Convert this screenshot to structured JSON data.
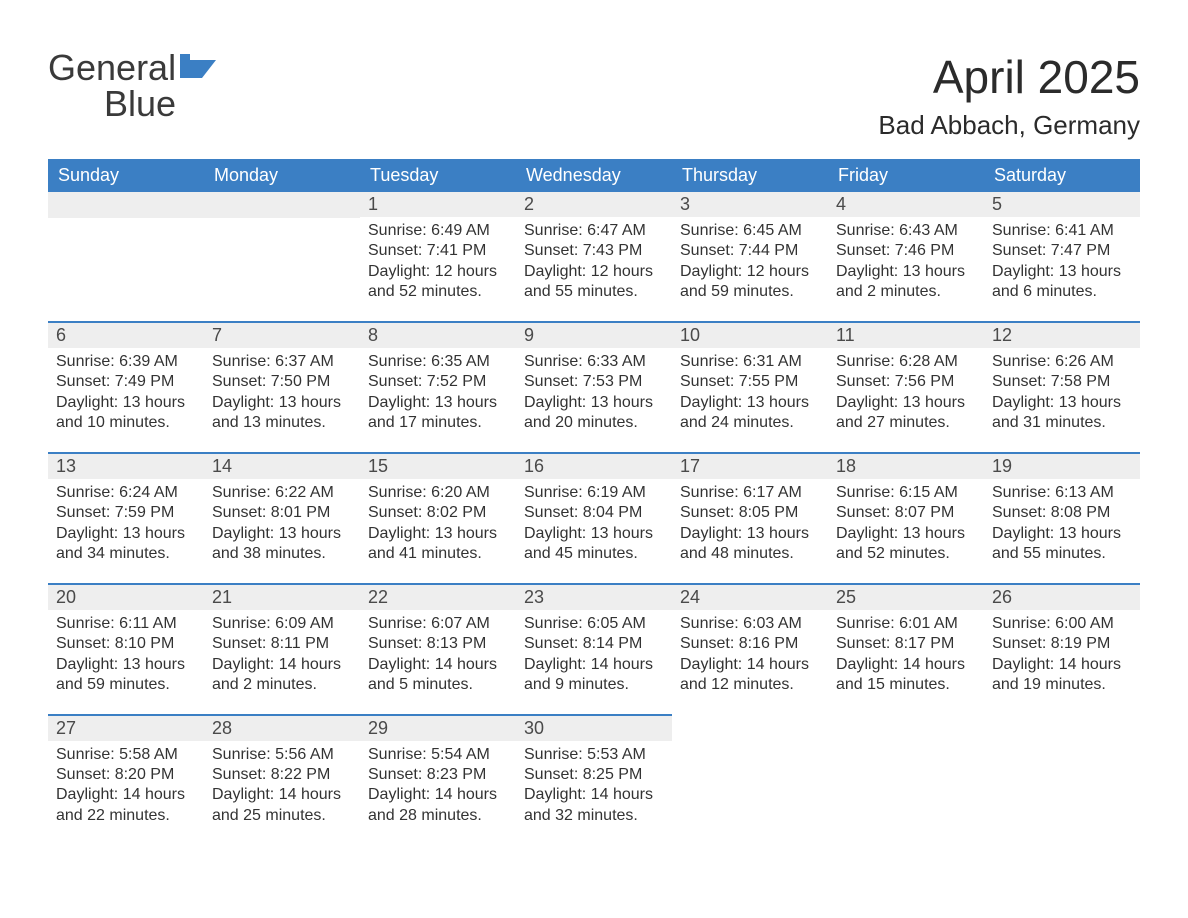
{
  "logo": {
    "word1": "General",
    "word2": "Blue"
  },
  "header": {
    "month_title": "April 2025",
    "location": "Bad Abbach, Germany"
  },
  "colors": {
    "header_bg": "#3b7fc4",
    "header_text": "#ffffff",
    "band_bg": "#eeeeee",
    "band_border": "#3b7fc4",
    "text": "#333333",
    "page_bg": "#ffffff"
  },
  "fonts": {
    "title_size": 46,
    "location_size": 26,
    "dow_size": 18,
    "daynum_size": 18,
    "body_size": 16
  },
  "dow": [
    "Sunday",
    "Monday",
    "Tuesday",
    "Wednesday",
    "Thursday",
    "Friday",
    "Saturday"
  ],
  "weeks": [
    [
      {
        "blank": true
      },
      {
        "blank": true
      },
      {
        "n": "1",
        "sunrise": "6:49 AM",
        "sunset": "7:41 PM",
        "dl1": "12 hours",
        "dl2": "and 52 minutes."
      },
      {
        "n": "2",
        "sunrise": "6:47 AM",
        "sunset": "7:43 PM",
        "dl1": "12 hours",
        "dl2": "and 55 minutes."
      },
      {
        "n": "3",
        "sunrise": "6:45 AM",
        "sunset": "7:44 PM",
        "dl1": "12 hours",
        "dl2": "and 59 minutes."
      },
      {
        "n": "4",
        "sunrise": "6:43 AM",
        "sunset": "7:46 PM",
        "dl1": "13 hours",
        "dl2": "and 2 minutes."
      },
      {
        "n": "5",
        "sunrise": "6:41 AM",
        "sunset": "7:47 PM",
        "dl1": "13 hours",
        "dl2": "and 6 minutes."
      }
    ],
    [
      {
        "n": "6",
        "sunrise": "6:39 AM",
        "sunset": "7:49 PM",
        "dl1": "13 hours",
        "dl2": "and 10 minutes."
      },
      {
        "n": "7",
        "sunrise": "6:37 AM",
        "sunset": "7:50 PM",
        "dl1": "13 hours",
        "dl2": "and 13 minutes."
      },
      {
        "n": "8",
        "sunrise": "6:35 AM",
        "sunset": "7:52 PM",
        "dl1": "13 hours",
        "dl2": "and 17 minutes."
      },
      {
        "n": "9",
        "sunrise": "6:33 AM",
        "sunset": "7:53 PM",
        "dl1": "13 hours",
        "dl2": "and 20 minutes."
      },
      {
        "n": "10",
        "sunrise": "6:31 AM",
        "sunset": "7:55 PM",
        "dl1": "13 hours",
        "dl2": "and 24 minutes."
      },
      {
        "n": "11",
        "sunrise": "6:28 AM",
        "sunset": "7:56 PM",
        "dl1": "13 hours",
        "dl2": "and 27 minutes."
      },
      {
        "n": "12",
        "sunrise": "6:26 AM",
        "sunset": "7:58 PM",
        "dl1": "13 hours",
        "dl2": "and 31 minutes."
      }
    ],
    [
      {
        "n": "13",
        "sunrise": "6:24 AM",
        "sunset": "7:59 PM",
        "dl1": "13 hours",
        "dl2": "and 34 minutes."
      },
      {
        "n": "14",
        "sunrise": "6:22 AM",
        "sunset": "8:01 PM",
        "dl1": "13 hours",
        "dl2": "and 38 minutes."
      },
      {
        "n": "15",
        "sunrise": "6:20 AM",
        "sunset": "8:02 PM",
        "dl1": "13 hours",
        "dl2": "and 41 minutes."
      },
      {
        "n": "16",
        "sunrise": "6:19 AM",
        "sunset": "8:04 PM",
        "dl1": "13 hours",
        "dl2": "and 45 minutes."
      },
      {
        "n": "17",
        "sunrise": "6:17 AM",
        "sunset": "8:05 PM",
        "dl1": "13 hours",
        "dl2": "and 48 minutes."
      },
      {
        "n": "18",
        "sunrise": "6:15 AM",
        "sunset": "8:07 PM",
        "dl1": "13 hours",
        "dl2": "and 52 minutes."
      },
      {
        "n": "19",
        "sunrise": "6:13 AM",
        "sunset": "8:08 PM",
        "dl1": "13 hours",
        "dl2": "and 55 minutes."
      }
    ],
    [
      {
        "n": "20",
        "sunrise": "6:11 AM",
        "sunset": "8:10 PM",
        "dl1": "13 hours",
        "dl2": "and 59 minutes."
      },
      {
        "n": "21",
        "sunrise": "6:09 AM",
        "sunset": "8:11 PM",
        "dl1": "14 hours",
        "dl2": "and 2 minutes."
      },
      {
        "n": "22",
        "sunrise": "6:07 AM",
        "sunset": "8:13 PM",
        "dl1": "14 hours",
        "dl2": "and 5 minutes."
      },
      {
        "n": "23",
        "sunrise": "6:05 AM",
        "sunset": "8:14 PM",
        "dl1": "14 hours",
        "dl2": "and 9 minutes."
      },
      {
        "n": "24",
        "sunrise": "6:03 AM",
        "sunset": "8:16 PM",
        "dl1": "14 hours",
        "dl2": "and 12 minutes."
      },
      {
        "n": "25",
        "sunrise": "6:01 AM",
        "sunset": "8:17 PM",
        "dl1": "14 hours",
        "dl2": "and 15 minutes."
      },
      {
        "n": "26",
        "sunrise": "6:00 AM",
        "sunset": "8:19 PM",
        "dl1": "14 hours",
        "dl2": "and 19 minutes."
      }
    ],
    [
      {
        "n": "27",
        "sunrise": "5:58 AM",
        "sunset": "8:20 PM",
        "dl1": "14 hours",
        "dl2": "and 22 minutes."
      },
      {
        "n": "28",
        "sunrise": "5:56 AM",
        "sunset": "8:22 PM",
        "dl1": "14 hours",
        "dl2": "and 25 minutes."
      },
      {
        "n": "29",
        "sunrise": "5:54 AM",
        "sunset": "8:23 PM",
        "dl1": "14 hours",
        "dl2": "and 28 minutes."
      },
      {
        "n": "30",
        "sunrise": "5:53 AM",
        "sunset": "8:25 PM",
        "dl1": "14 hours",
        "dl2": "and 32 minutes."
      },
      {
        "blank": true,
        "trailing": true
      },
      {
        "blank": true,
        "trailing": true
      },
      {
        "blank": true,
        "trailing": true
      }
    ]
  ],
  "labels": {
    "sunrise": "Sunrise:",
    "sunset": "Sunset:",
    "daylight": "Daylight:"
  }
}
